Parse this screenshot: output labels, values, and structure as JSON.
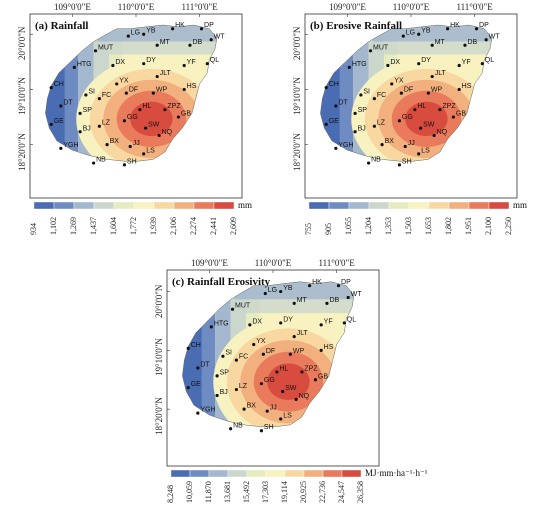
{
  "lon_labels": [
    "109°0'0\"E",
    "110°0'0\"E",
    "111°0'0\"E"
  ],
  "lat_labels": [
    "20°0'0\"N",
    "19°10'0\"N",
    "18°20'0\"N"
  ],
  "stations": [
    "LG",
    "YB",
    "HK",
    "DP",
    "MUT",
    "MT",
    "DB",
    "WT",
    "HTG",
    "DX",
    "DY",
    "YF",
    "QL",
    "CH",
    "YX",
    "JLT",
    "SI",
    "HS",
    "DT",
    "FC",
    "DF",
    "WP",
    "SP",
    "HL",
    "ZPZ",
    "GE",
    "GG",
    "GB",
    "LZ",
    "SW",
    "BJ",
    "YGH",
    "BX",
    "JJ",
    "NQ",
    "LS",
    "NB",
    "SH"
  ],
  "panels": [
    {
      "title": "(a) Rainfall",
      "unit": "mm",
      "palette": [
        "#4a6cb3",
        "#6e8cc2",
        "#a3b8cf",
        "#cbd6cd",
        "#e6ebc0",
        "#f7f2c0",
        "#f8d8a0",
        "#f2b07e",
        "#e97b5c",
        "#d84b3f"
      ],
      "cb_ticks": [
        "934",
        "1,102",
        "1,269",
        "1,437",
        "1,604",
        "1,772",
        "1,939",
        "2,106",
        "2,274",
        "2,441",
        "2,609"
      ]
    },
    {
      "title": "(b) Erosive Rainfall",
      "unit": "mm",
      "palette": [
        "#4a6cb3",
        "#6e8cc2",
        "#a3b8cf",
        "#cbd6cd",
        "#e6ebc0",
        "#f7f2c0",
        "#f8d8a0",
        "#f2b07e",
        "#e97b5c",
        "#d84b3f"
      ],
      "cb_ticks": [
        "755",
        "905",
        "1,055",
        "1,204",
        "1,353",
        "1,503",
        "1,653",
        "1,802",
        "1,951",
        "2,100",
        "2,250"
      ]
    },
    {
      "title": "(c) Rainfall Erosivity",
      "unit": "MJ·mm·ha⁻¹·h⁻¹",
      "palette": [
        "#4a6cb3",
        "#6e8cc2",
        "#a3b8cf",
        "#cbd6cd",
        "#e6ebc0",
        "#f7f2c0",
        "#f8d8a0",
        "#f2b07e",
        "#e97b5c",
        "#d84b3f"
      ],
      "cb_ticks": [
        "8,248",
        "10,059",
        "11,870",
        "13,681",
        "15,492",
        "17,303",
        "19,114",
        "20,925",
        "22,736",
        "24,547",
        "26,358"
      ]
    }
  ]
}
